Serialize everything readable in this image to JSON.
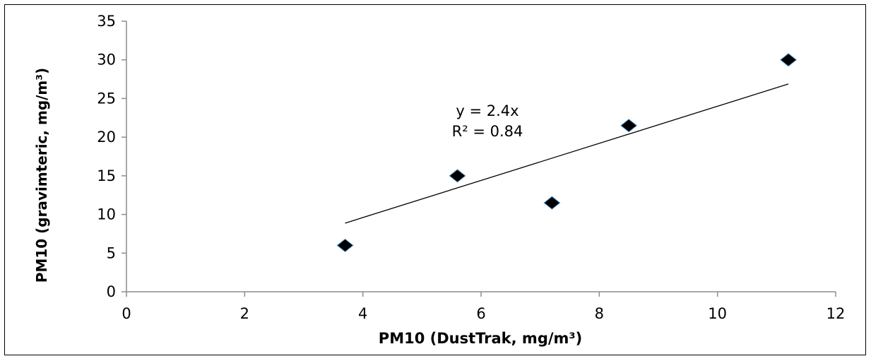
{
  "chart_data": {
    "type": "scatter",
    "xlabel": "PM10 (DustTrak, mg/m³)",
    "ylabel": "PM10 (gravimteric, mg/m³)",
    "xlim": [
      0,
      12
    ],
    "ylim": [
      0,
      35
    ],
    "x_ticks": [
      0,
      2,
      4,
      6,
      8,
      10,
      12
    ],
    "y_ticks": [
      0,
      5,
      10,
      15,
      20,
      25,
      30,
      35
    ],
    "grid": false,
    "legend": "none",
    "marker_color": "#000000",
    "marker_outline": "#5b9bd5",
    "series": [
      {
        "x": [
          3.7,
          5.6,
          7.2,
          8.5,
          11.2
        ],
        "y": [
          6.0,
          15.0,
          11.5,
          21.5,
          30.0
        ],
        "marker": "diamond"
      }
    ],
    "trendline": {
      "x_range": [
        3.7,
        11.2
      ],
      "slope": 2.4,
      "intercept": 0
    },
    "annotations": {
      "equation": "y = 2.4x",
      "r_squared": "R² = 0.84"
    }
  }
}
